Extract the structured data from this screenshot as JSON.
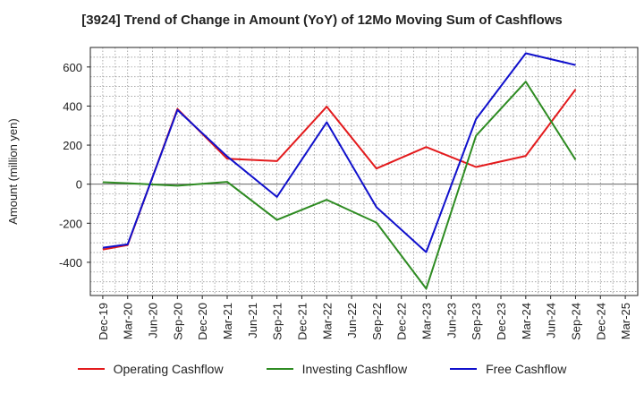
{
  "chart_data": {
    "type": "line",
    "title": "[3924]  Trend of Change in Amount (YoY) of 12Mo Moving Sum of Cashflows",
    "xlabel": "",
    "ylabel": "Amount (million yen)",
    "ylim": [
      -570,
      700
    ],
    "yticks": [
      -400,
      -200,
      0,
      200,
      400,
      600
    ],
    "yticklabels": [
      "-400",
      "-200",
      "0",
      "200",
      "400",
      "600"
    ],
    "grid": true,
    "legend_position": "bottom-center",
    "categories": [
      "Dec-19",
      "Mar-20",
      "Jun-20",
      "Sep-20",
      "Dec-20",
      "Mar-21",
      "Jun-21",
      "Sep-21",
      "Dec-21",
      "Mar-22",
      "Jun-22",
      "Sep-22",
      "Dec-22",
      "Mar-23",
      "Jun-23",
      "Sep-23",
      "Dec-23",
      "Mar-24",
      "Jun-24",
      "Sep-24",
      "Dec-24",
      "Mar-25"
    ],
    "series": [
      {
        "name": "Operating Cashflow",
        "color": "#e31a1c",
        "values": [
          -335,
          -312,
          null,
          385,
          null,
          130,
          null,
          118,
          null,
          397,
          null,
          80,
          null,
          190,
          null,
          88,
          null,
          145,
          null,
          485,
          null,
          null
        ]
      },
      {
        "name": "Investing Cashflow",
        "color": "#2e8b22",
        "values": [
          10,
          5,
          null,
          -8,
          null,
          12,
          null,
          -183,
          null,
          -80,
          null,
          -197,
          null,
          -535,
          null,
          248,
          null,
          525,
          null,
          125,
          null,
          null
        ]
      },
      {
        "name": "Free Cashflow",
        "color": "#1010cc",
        "values": [
          -325,
          -308,
          null,
          380,
          null,
          142,
          null,
          -65,
          null,
          317,
          null,
          -118,
          null,
          -348,
          null,
          333,
          null,
          670,
          null,
          610,
          null,
          null
        ]
      }
    ]
  }
}
